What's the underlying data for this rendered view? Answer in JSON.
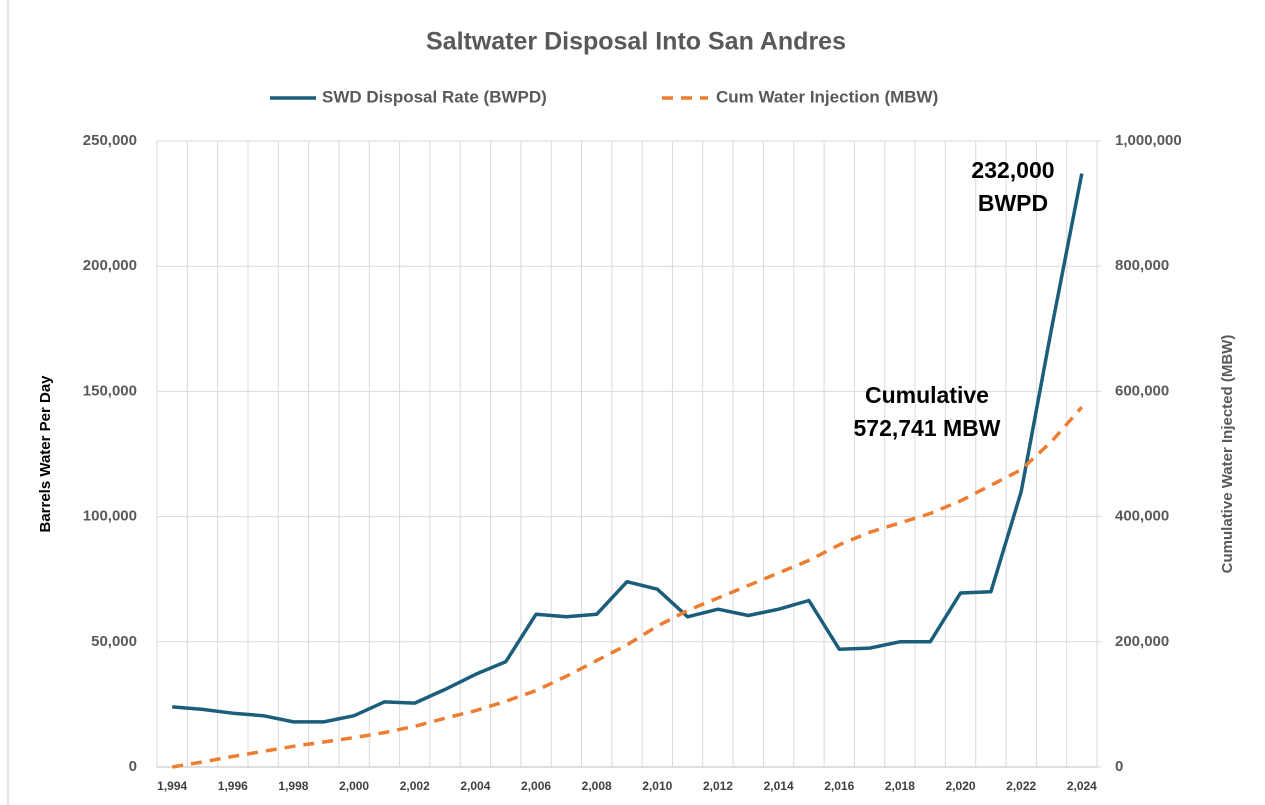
{
  "chart_data": {
    "type": "line",
    "title": "Saltwater Disposal Into San Andres",
    "ylabel": "Barrels Water Per Day",
    "y2label": "Cumulative Water Injected (MBW)",
    "categories": [
      "1,994",
      null,
      "1,996",
      null,
      "1,998",
      null,
      "2,000",
      null,
      "2,002",
      null,
      "2,004",
      null,
      "2,006",
      null,
      "2,008",
      null,
      "2,010",
      null,
      "2,012",
      null,
      "2,014",
      null,
      "2,016",
      null,
      "2,018",
      null,
      "2,020",
      null,
      "2,022",
      null,
      "2,024"
    ],
    "series": [
      {
        "name": "SWD Disposal Rate (BWPD)",
        "color": "#1b5e7b",
        "dashed": false,
        "axis": "y",
        "values": [
          24000,
          23000,
          21500,
          20500,
          18000,
          18000,
          20500,
          26000,
          25500,
          31000,
          37000,
          42000,
          61000,
          60000,
          61000,
          74000,
          71000,
          60000,
          63000,
          60500,
          63000,
          66500,
          47000,
          47500,
          50000,
          50000,
          69500,
          70000,
          110000,
          175000,
          237000
        ]
      },
      {
        "name": "Cum Water Injection (MBW)",
        "color": "#ed7d31",
        "dashed": true,
        "axis": "y2",
        "values": [
          0,
          8000,
          17000,
          25000,
          33000,
          40000,
          47000,
          55000,
          65000,
          78000,
          90000,
          105000,
          122000,
          145000,
          170000,
          195000,
          225000,
          250000,
          270000,
          290000,
          310000,
          330000,
          355000,
          375000,
          390000,
          405000,
          425000,
          450000,
          475000,
          520000,
          575000
        ]
      }
    ],
    "ylim": [
      0,
      250000
    ],
    "yticks": [
      0,
      {
        "value": 50000,
        "label": "50,000"
      },
      {
        "value": 100000,
        "label": "100,000"
      },
      {
        "value": 150000,
        "label": "150,000"
      },
      {
        "value": 200000,
        "label": "200,000"
      },
      {
        "value": 250000,
        "label": "250,000"
      }
    ],
    "y2lim": [
      0,
      1000000
    ],
    "y2ticks": [
      0,
      {
        "value": 200000,
        "label": "200,000"
      },
      {
        "value": 400000,
        "label": "400,000"
      },
      {
        "value": 600000,
        "label": "600,000"
      },
      {
        "value": 800000,
        "label": "800,000"
      },
      {
        "value": 1000000,
        "label": "1,000,000"
      }
    ],
    "grid": true,
    "legend": "top",
    "annotations": [
      [
        "232,000",
        "BWPD"
      ],
      [
        "Cumulative",
        "572,741 MBW"
      ]
    ]
  }
}
